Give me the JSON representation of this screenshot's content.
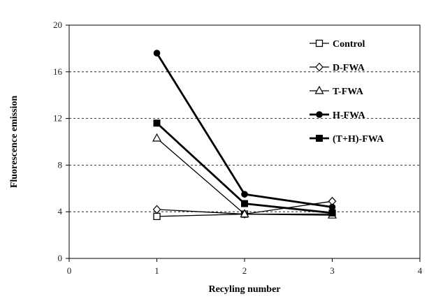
{
  "chart_data": {
    "type": "line",
    "title": "",
    "xlabel": "Recyling number",
    "ylabel": "Fluorescence emission",
    "xlim": [
      0,
      4
    ],
    "ylim": [
      0,
      20
    ],
    "xticks": [
      0,
      1,
      2,
      3,
      4
    ],
    "xtick_labels": [
      "0",
      "1",
      "2",
      "3",
      "4"
    ],
    "yticks": [
      0,
      4,
      8,
      12,
      16,
      20
    ],
    "ytick_labels": [
      "0",
      "4",
      "8",
      "12",
      "16",
      "20"
    ],
    "grid": "horizontal dashed",
    "legend_position": "top-right",
    "x": [
      1,
      2,
      3
    ],
    "series": [
      {
        "name": "Control",
        "values": [
          3.6,
          3.8,
          3.8
        ],
        "marker": "square-open",
        "line": "normal"
      },
      {
        "name": "D-FWA",
        "values": [
          4.2,
          3.8,
          4.9
        ],
        "marker": "diamond-open",
        "line": "normal"
      },
      {
        "name": "T-FWA",
        "values": [
          10.3,
          3.8,
          3.7
        ],
        "marker": "triangle-open",
        "line": "normal"
      },
      {
        "name": "H-FWA",
        "values": [
          17.6,
          5.5,
          4.4
        ],
        "marker": "circle-filled",
        "line": "bold"
      },
      {
        "name": "(T+H)-FWA",
        "values": [
          11.6,
          4.7,
          3.9
        ],
        "marker": "square-filled",
        "line": "bold"
      }
    ]
  }
}
